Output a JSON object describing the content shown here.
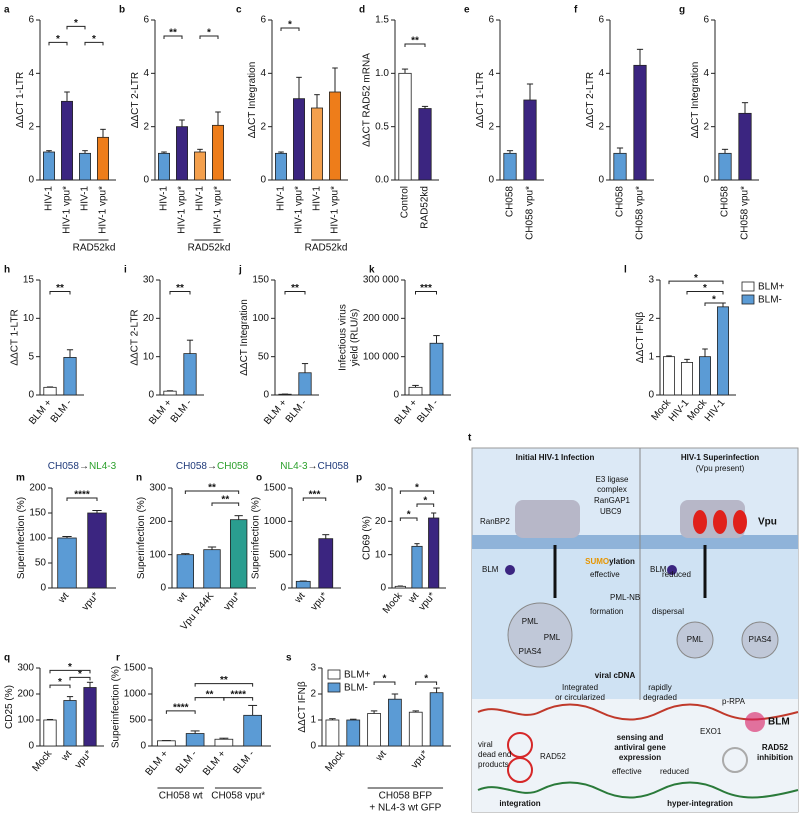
{
  "chart_data": [
    {
      "type": "bar",
      "panel": "a",
      "ylabel": [
        "ΔΔCT 1-LTR"
      ],
      "categories": [
        "HIV-1",
        "HIV-1 vpu*",
        "HIV-1",
        "HIV-1 vpu*"
      ],
      "values": [
        1.05,
        2.95,
        1.0,
        1.6
      ],
      "errors": [
        0.05,
        0.35,
        0.1,
        0.3
      ],
      "colors": [
        "#5b9bd5",
        "#3b2580",
        "#5b9bd5",
        "#ee7d1a"
      ],
      "ylim": [
        0,
        6
      ],
      "yticks": [
        0,
        2,
        4,
        6
      ],
      "annotations": [
        "*",
        "*",
        "*"
      ],
      "group_labels": [
        "RAD52kd"
      ]
    },
    {
      "type": "bar",
      "panel": "b",
      "ylabel": [
        "ΔΔCT 2-LTR"
      ],
      "categories": [
        "HIV-1",
        "HIV-1 vpu*",
        "HIV-1",
        "HIV-1 vpu*"
      ],
      "values": [
        1.0,
        2.0,
        1.05,
        2.05
      ],
      "errors": [
        0.05,
        0.25,
        0.1,
        0.5
      ],
      "colors": [
        "#5b9bd5",
        "#3b2580",
        "#f4a04d",
        "#ee7d1a"
      ],
      "ylim": [
        0,
        6
      ],
      "yticks": [
        0,
        2,
        4,
        6
      ],
      "annotations": [
        "**",
        "*"
      ],
      "group_labels": [
        "RAD52kd"
      ]
    },
    {
      "type": "bar",
      "panel": "c",
      "ylabel": [
        "ΔΔCT Integration"
      ],
      "categories": [
        "HIV-1",
        "HIV-1 vpu*",
        "HIV-1",
        "HIV-1 vpu*"
      ],
      "values": [
        1.0,
        3.05,
        2.7,
        3.3
      ],
      "errors": [
        0.05,
        0.8,
        0.5,
        0.9
      ],
      "colors": [
        "#5b9bd5",
        "#3b2580",
        "#f4a04d",
        "#ee7d1a"
      ],
      "ylim": [
        0,
        6
      ],
      "yticks": [
        0,
        2,
        4,
        6
      ],
      "annotations": [
        "*"
      ],
      "group_labels": [
        "RAD52kd"
      ]
    },
    {
      "type": "bar",
      "panel": "d",
      "ylabel": [
        "ΔΔCT RAD52 mRNA"
      ],
      "categories": [
        "Control",
        "RAD52kd"
      ],
      "values": [
        1.0,
        0.67
      ],
      "errors": [
        0.04,
        0.02
      ],
      "colors": [
        "#ffffff",
        "#3b2580"
      ],
      "ylim": [
        0,
        1.5
      ],
      "yticks": [
        {
          "value": 0,
          "label": "0.0"
        },
        0.5,
        {
          "value": 1,
          "label": "1.0"
        },
        1.5
      ],
      "annotations": [
        "**"
      ]
    },
    {
      "type": "bar",
      "panel": "e",
      "ylabel": [
        "ΔΔCT 1-LTR"
      ],
      "categories": [
        "CH058",
        "CH058 vpu*"
      ],
      "values": [
        1.0,
        3.0
      ],
      "errors": [
        0.1,
        0.6
      ],
      "colors": [
        "#5b9bd5",
        "#3b2580"
      ],
      "ylim": [
        0,
        6
      ],
      "yticks": [
        0,
        2,
        4,
        6
      ]
    },
    {
      "type": "bar",
      "panel": "f",
      "ylabel": [
        "ΔΔCT 2-LTR"
      ],
      "categories": [
        "CH058",
        "CH058 vpu*"
      ],
      "values": [
        1.0,
        4.3
      ],
      "errors": [
        0.2,
        0.6
      ],
      "colors": [
        "#5b9bd5",
        "#3b2580"
      ],
      "ylim": [
        0,
        6
      ],
      "yticks": [
        0,
        2,
        4,
        6
      ]
    },
    {
      "type": "bar",
      "panel": "g",
      "ylabel": [
        "ΔΔCT Integration"
      ],
      "categories": [
        "CH058",
        "CH058 vpu*"
      ],
      "values": [
        1.0,
        2.5
      ],
      "errors": [
        0.15,
        0.4
      ],
      "colors": [
        "#5b9bd5",
        "#3b2580"
      ],
      "ylim": [
        0,
        6
      ],
      "yticks": [
        0,
        2,
        4,
        6
      ]
    },
    {
      "type": "bar",
      "panel": "h",
      "ylabel": [
        "ΔΔCT 1-LTR"
      ],
      "categories": [
        "BLM +",
        "BLM -"
      ],
      "values": [
        1.0,
        4.9
      ],
      "errors": [
        0.05,
        1.0
      ],
      "colors": [
        "#ffffff",
        "#5b9bd5"
      ],
      "ylim": [
        0,
        15
      ],
      "yticks": [
        0,
        5,
        10,
        15
      ],
      "annotations": [
        "**"
      ]
    },
    {
      "type": "bar",
      "panel": "i",
      "ylabel": [
        "ΔΔCT 2-LTR"
      ],
      "categories": [
        "BLM +",
        "BLM -"
      ],
      "values": [
        1.0,
        10.8
      ],
      "errors": [
        0.1,
        3.5
      ],
      "colors": [
        "#ffffff",
        "#5b9bd5"
      ],
      "ylim": [
        0,
        30
      ],
      "yticks": [
        0,
        10,
        20,
        30
      ],
      "annotations": [
        "**"
      ]
    },
    {
      "type": "bar",
      "panel": "j",
      "ylabel": [
        "ΔΔCT Integration"
      ],
      "categories": [
        "BLM +",
        "BLM -"
      ],
      "values": [
        1,
        29
      ],
      "errors": [
        0.2,
        12
      ],
      "colors": [
        "#ffffff",
        "#5b9bd5"
      ],
      "ylim": [
        0,
        150
      ],
      "yticks": [
        0,
        50,
        100,
        150
      ],
      "annotations": [
        "**"
      ]
    },
    {
      "type": "bar",
      "panel": "k",
      "ylabel": [
        "Infectious virus",
        "yield (RLU/s)"
      ],
      "categories": [
        "BLM +",
        "BLM -"
      ],
      "values": [
        20000,
        135000
      ],
      "errors": [
        5000,
        20000
      ],
      "colors": [
        "#ffffff",
        "#5b9bd5"
      ],
      "ylim": [
        0,
        300000
      ],
      "yticks": [
        0,
        {
          "value": 100000,
          "label": "100 000"
        },
        {
          "value": 200000,
          "label": "200 000"
        },
        {
          "value": 300000,
          "label": "300 000"
        }
      ],
      "annotations": [
        "***"
      ]
    },
    {
      "type": "bar",
      "panel": "l",
      "ylabel": [
        "ΔΔCT IFNβ"
      ],
      "categories": [
        "Mock",
        "HIV-1",
        "Mock",
        "HIV-1"
      ],
      "values": [
        1.0,
        0.85,
        1.0,
        2.3
      ],
      "errors": [
        0.02,
        0.08,
        0.2,
        0.1
      ],
      "colors": [
        "#ffffff",
        "#ffffff",
        "#5b9bd5",
        "#5b9bd5"
      ],
      "ylim": [
        0,
        3
      ],
      "yticks": [
        0,
        1,
        2,
        3
      ],
      "annotations": [
        "*",
        "*",
        "*"
      ],
      "legend": [
        {
          "name": "BLM+",
          "color": "#ffffff"
        },
        {
          "name": "BLM-",
          "color": "#5b9bd5"
        }
      ]
    },
    {
      "type": "bar",
      "panel": "m",
      "title_parts": [
        {
          "text": "CH058",
          "color": "#1f3a7a"
        },
        {
          "text": "→",
          "color": "#222222"
        },
        {
          "text": "NL4-3",
          "color": "#2ca02c"
        }
      ],
      "ylabel": [
        "Superinfection (%)"
      ],
      "categories": [
        "wt",
        "vpu*"
      ],
      "values": [
        100,
        150
      ],
      "errors": [
        3,
        5
      ],
      "colors": [
        "#5b9bd5",
        "#3b2580"
      ],
      "ylim": [
        0,
        200
      ],
      "yticks": [
        0,
        50,
        100,
        150,
        200
      ],
      "annotations": [
        "****"
      ]
    },
    {
      "type": "bar",
      "panel": "n",
      "title_parts": [
        {
          "text": "CH058",
          "color": "#1f3a7a"
        },
        {
          "text": "→",
          "color": "#222222"
        },
        {
          "text": "CH058",
          "color": "#2ca02c"
        }
      ],
      "ylabel": [
        "Superinfection (%)"
      ],
      "categories": [
        "wt",
        "Vpu R44K",
        "vpu*"
      ],
      "values": [
        100,
        115,
        205
      ],
      "errors": [
        3,
        8,
        12
      ],
      "colors": [
        "#5b9bd5",
        "#5b9bd5",
        "#2a9d8f"
      ],
      "ylim": [
        0,
        300
      ],
      "yticks": [
        0,
        100,
        200,
        300
      ],
      "annotations": [
        "**",
        "**"
      ]
    },
    {
      "type": "bar",
      "panel": "o",
      "title_parts": [
        {
          "text": "NL4-3",
          "color": "#2ca02c"
        },
        {
          "text": "→",
          "color": "#222222"
        },
        {
          "text": "CH058",
          "color": "#1f3a7a"
        }
      ],
      "ylabel": [
        "Superinfection (%)"
      ],
      "categories": [
        "wt",
        "vpu*"
      ],
      "values": [
        100,
        740
      ],
      "errors": [
        5,
        60
      ],
      "colors": [
        "#5b9bd5",
        "#3b2580"
      ],
      "ylim": [
        0,
        1500
      ],
      "yticks": [
        0,
        500,
        1000,
        1500
      ],
      "annotations": [
        "***"
      ]
    },
    {
      "type": "bar",
      "panel": "p",
      "ylabel": [
        "CD69 (%)"
      ],
      "categories": [
        "Mock",
        "wt",
        "vpu*"
      ],
      "values": [
        0.5,
        12.5,
        21
      ],
      "errors": [
        0.1,
        0.8,
        1.5
      ],
      "colors": [
        "#ffffff",
        "#5b9bd5",
        "#3b2580"
      ],
      "ylim": [
        0,
        30
      ],
      "yticks": [
        0,
        10,
        20,
        30
      ],
      "annotations": [
        "*",
        "*",
        "*"
      ]
    },
    {
      "type": "bar",
      "panel": "q",
      "ylabel": [
        "CD25 (%)"
      ],
      "categories": [
        "Mock",
        "wt",
        "vpu*"
      ],
      "values": [
        100,
        175,
        225
      ],
      "errors": [
        2,
        15,
        20
      ],
      "colors": [
        "#ffffff",
        "#5b9bd5",
        "#3b2580"
      ],
      "ylim": [
        0,
        300
      ],
      "yticks": [
        0,
        100,
        200,
        300
      ],
      "annotations": [
        "*",
        "*",
        "*"
      ]
    },
    {
      "type": "bar",
      "panel": "r",
      "ylabel": [
        "Superinfection (%)"
      ],
      "categories": [
        "BLM +",
        "BLM -",
        "BLM +",
        "BLM -"
      ],
      "values": [
        100,
        240,
        130,
        590
      ],
      "errors": [
        5,
        50,
        20,
        190
      ],
      "colors": [
        "#ffffff",
        "#5b9bd5",
        "#ffffff",
        "#5b9bd5"
      ],
      "ylim": [
        0,
        1500
      ],
      "yticks": [
        0,
        500,
        1000,
        1500
      ],
      "annotations": [
        "****",
        "**",
        "**",
        "****"
      ],
      "group_labels": [
        "CH058 wt",
        "CH058 vpu*"
      ]
    },
    {
      "type": "grouped_bar",
      "panel": "s",
      "ylabel": [
        "ΔΔCT IFNβ"
      ],
      "categories": [
        "Mock",
        "wt",
        "vpu*"
      ],
      "series": [
        {
          "name": "BLM+",
          "color": "#ffffff",
          "values": [
            1.0,
            1.25,
            1.3
          ],
          "errors": [
            0.05,
            0.1,
            0.05
          ]
        },
        {
          "name": "BLM-",
          "color": "#5b9bd5",
          "values": [
            1.0,
            1.8,
            2.05
          ],
          "errors": [
            0.03,
            0.2,
            0.18
          ]
        }
      ],
      "ylim": [
        0,
        3
      ],
      "yticks": [
        0,
        1,
        2,
        3
      ],
      "annotations": [
        "*",
        "*"
      ],
      "group_labels": [
        "CH058 BFP",
        "+ NL4-3 wt GFP"
      ]
    }
  ],
  "diagram": {
    "panel": "t",
    "left_title": "Initial HIV-1 Infection",
    "right_title": "HIV-1 Superinfection",
    "right_subtitle": "(Vpu present)",
    "e3": "E3 ligase",
    "e3b": "complex",
    "rangap1": "RanGAP1",
    "ubc9": "UBC9",
    "ranbp2": "RanBP2",
    "vpu": "Vpu",
    "blm_left": "BLM",
    "blm_right": "BLM",
    "sumo": "SUMO",
    "ylation": "ylation",
    "effective_1": "effective",
    "reduced_1": "reduced",
    "pmlnb": "PML-NB",
    "formation": "formation",
    "dispersal": "dispersal",
    "pml": "PML",
    "pias4": "PIAS4",
    "viral_cdna": "viral cDNA",
    "integrated": "Integrated",
    "circularized": "or circularized",
    "rapidly": "rapidly",
    "degraded": "degraded",
    "prpa": "p-RPA",
    "blm_big": "BLM",
    "exo1": "EXO1",
    "rad52_inhib": "RAD52",
    "inhibition": "inhibition",
    "dead_end": [
      "viral",
      "dead end",
      "products"
    ],
    "rad52_small": "RAD52",
    "sensing": [
      "sensing and",
      "antiviral gene",
      "expression"
    ],
    "effective_2": "effective",
    "reduced_2": "reduced",
    "integration": "integration",
    "hyper": "hyper-integration"
  }
}
